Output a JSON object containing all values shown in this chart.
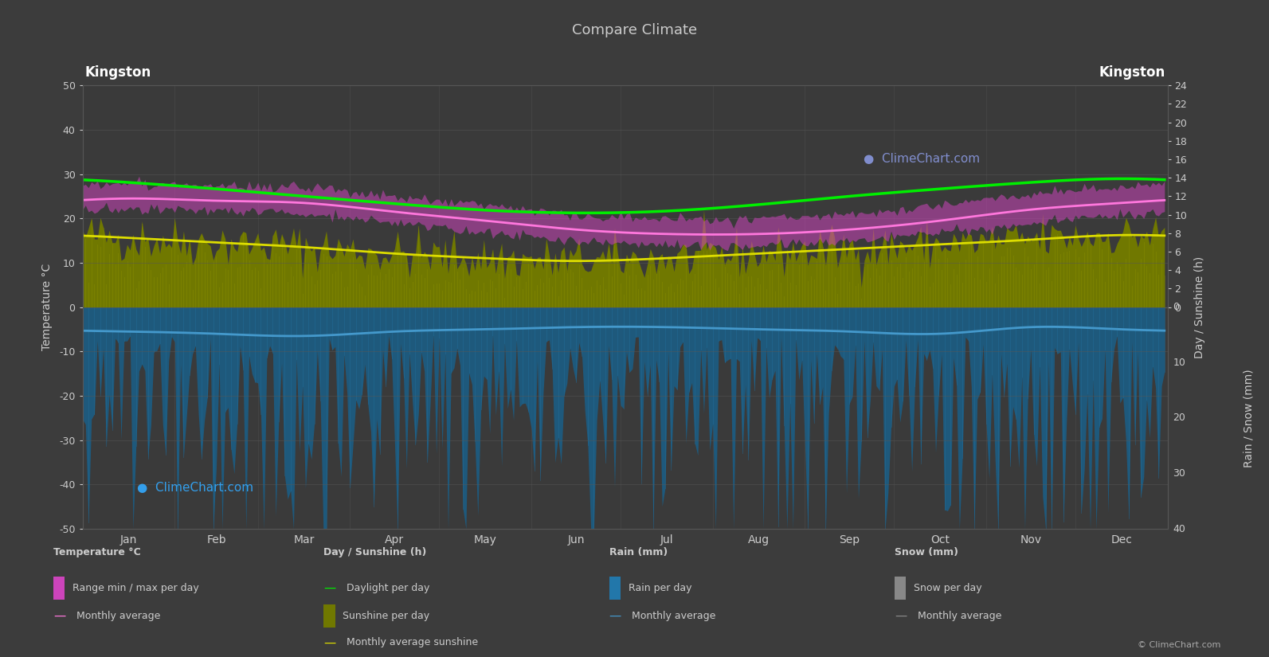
{
  "title": "Compare Climate",
  "location": "Kingston",
  "bg_color": "#3c3c3c",
  "plot_bg_color": "#3a3a3a",
  "grid_color": "#565656",
  "text_color": "#cccccc",
  "temp_max_monthly": [
    28.0,
    27.5,
    27.0,
    25.0,
    23.0,
    21.0,
    20.0,
    20.0,
    21.0,
    23.0,
    25.5,
    27.0
  ],
  "temp_min_monthly": [
    22.0,
    22.0,
    21.0,
    19.0,
    17.0,
    15.0,
    14.0,
    14.0,
    15.0,
    17.0,
    19.0,
    21.0
  ],
  "temp_avg_monthly": [
    24.5,
    24.0,
    23.5,
    21.5,
    19.5,
    17.5,
    16.5,
    16.5,
    17.5,
    19.5,
    22.0,
    23.5
  ],
  "daylight_monthly": [
    13.5,
    12.8,
    12.0,
    11.2,
    10.5,
    10.2,
    10.4,
    11.1,
    12.0,
    12.8,
    13.5,
    13.9
  ],
  "sunshine_monthly": [
    7.5,
    7.0,
    6.5,
    5.8,
    5.3,
    5.0,
    5.3,
    5.8,
    6.3,
    6.8,
    7.3,
    7.8
  ],
  "rain_avg_line_temp": [
    -5.5,
    -6.0,
    -6.5,
    -5.5,
    -5.0,
    -4.5,
    -4.5,
    -5.0,
    -5.5,
    -6.0,
    -4.5,
    -5.0
  ],
  "months": [
    "Jan",
    "Feb",
    "Mar",
    "Apr",
    "May",
    "Jun",
    "Jul",
    "Aug",
    "Sep",
    "Oct",
    "Nov",
    "Dec"
  ],
  "daylight_color": "#00ee00",
  "sunshine_bar_dark": "#707800",
  "sunshine_bar_light": "#aaaa00",
  "sunshine_line_color": "#dddd00",
  "temp_range_fill": "#cc44bb",
  "temp_avg_color": "#ff77dd",
  "rain_bar_dark": "#1a5f88",
  "rain_bar_light": "#2277aa",
  "rain_line_color": "#4499cc",
  "snow_bar_color": "#888888",
  "copyright_text": "© ClimeChart.com"
}
